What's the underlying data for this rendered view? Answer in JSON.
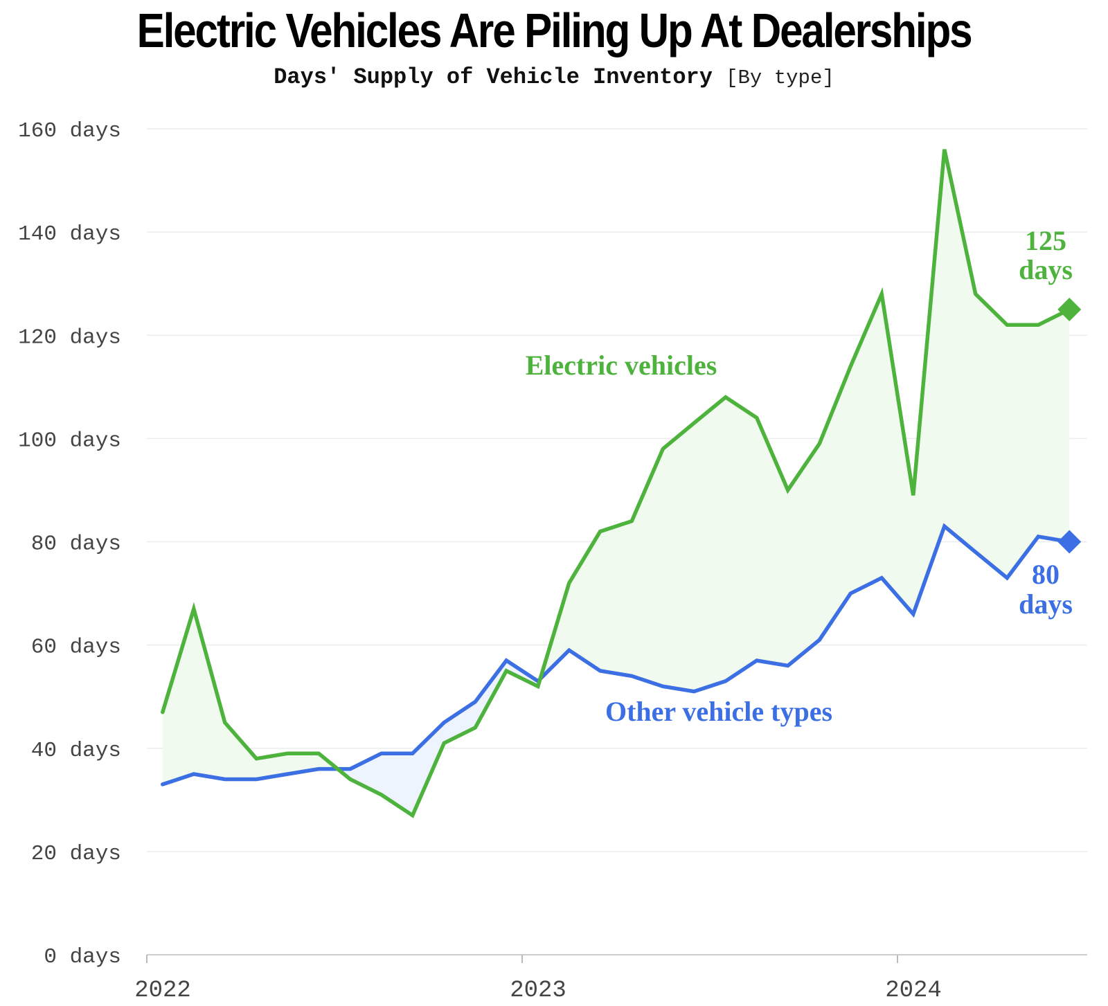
{
  "header": {
    "title": "Electric Vehicles Are Piling Up At Dealerships",
    "subtitle": "Days' Supply of Vehicle Inventory",
    "subtitle_note": "[By type]"
  },
  "chart_data": {
    "type": "line",
    "title": "Electric Vehicles Are Piling Up At Dealerships",
    "subtitle": "Days' Supply of Vehicle Inventory [By type]",
    "xlabel": "",
    "ylabel": "",
    "x_range": [
      2022.0,
      2024.5
    ],
    "ylim": [
      0,
      160
    ],
    "grid": true,
    "y_ticks": [
      {
        "value": 0,
        "label": "0 days"
      },
      {
        "value": 20,
        "label": "20 days"
      },
      {
        "value": 40,
        "label": "40 days"
      },
      {
        "value": 60,
        "label": "60 days"
      },
      {
        "value": 80,
        "label": "80 days"
      },
      {
        "value": 100,
        "label": "100 days"
      },
      {
        "value": 120,
        "label": "120 days"
      },
      {
        "value": 140,
        "label": "140 days"
      },
      {
        "value": 160,
        "label": "160 days"
      }
    ],
    "x_ticks": [
      {
        "value": 2022.0,
        "label": "2022"
      },
      {
        "value": 2023.0,
        "label": "2023"
      },
      {
        "value": 2024.0,
        "label": "2024"
      }
    ],
    "x": [
      2022.042,
      2022.125,
      2022.208,
      2022.292,
      2022.375,
      2022.458,
      2022.542,
      2022.625,
      2022.708,
      2022.792,
      2022.875,
      2022.958,
      2023.042,
      2023.125,
      2023.208,
      2023.292,
      2023.375,
      2023.458,
      2023.542,
      2023.625,
      2023.708,
      2023.792,
      2023.875,
      2023.958,
      2024.042,
      2024.125,
      2024.208,
      2024.292,
      2024.375,
      2024.458
    ],
    "series": [
      {
        "name": "Electric vehicles",
        "label": "Electric vehicles",
        "color": "#4db33d",
        "fill_color": "#f0faee",
        "values": [
          47,
          67,
          45,
          38,
          39,
          39,
          34,
          31,
          27,
          41,
          44,
          55,
          52,
          72,
          82,
          84,
          98,
          103,
          108,
          104,
          90,
          99,
          114,
          128,
          89,
          156,
          128,
          122,
          122,
          125
        ],
        "end_label_value": "125",
        "end_label_unit": "days"
      },
      {
        "name": "Other vehicle types",
        "label": "Other vehicle types",
        "color": "#3b6fe3",
        "fill_color": "#eef4fd",
        "values": [
          33,
          35,
          34,
          34,
          35,
          36,
          36,
          39,
          39,
          45,
          49,
          57,
          53,
          59,
          55,
          54,
          52,
          51,
          53,
          57,
          56,
          61,
          70,
          73,
          66,
          83,
          78,
          73,
          81,
          80
        ],
        "end_label_value": "80",
        "end_label_unit": "days"
      }
    ]
  }
}
